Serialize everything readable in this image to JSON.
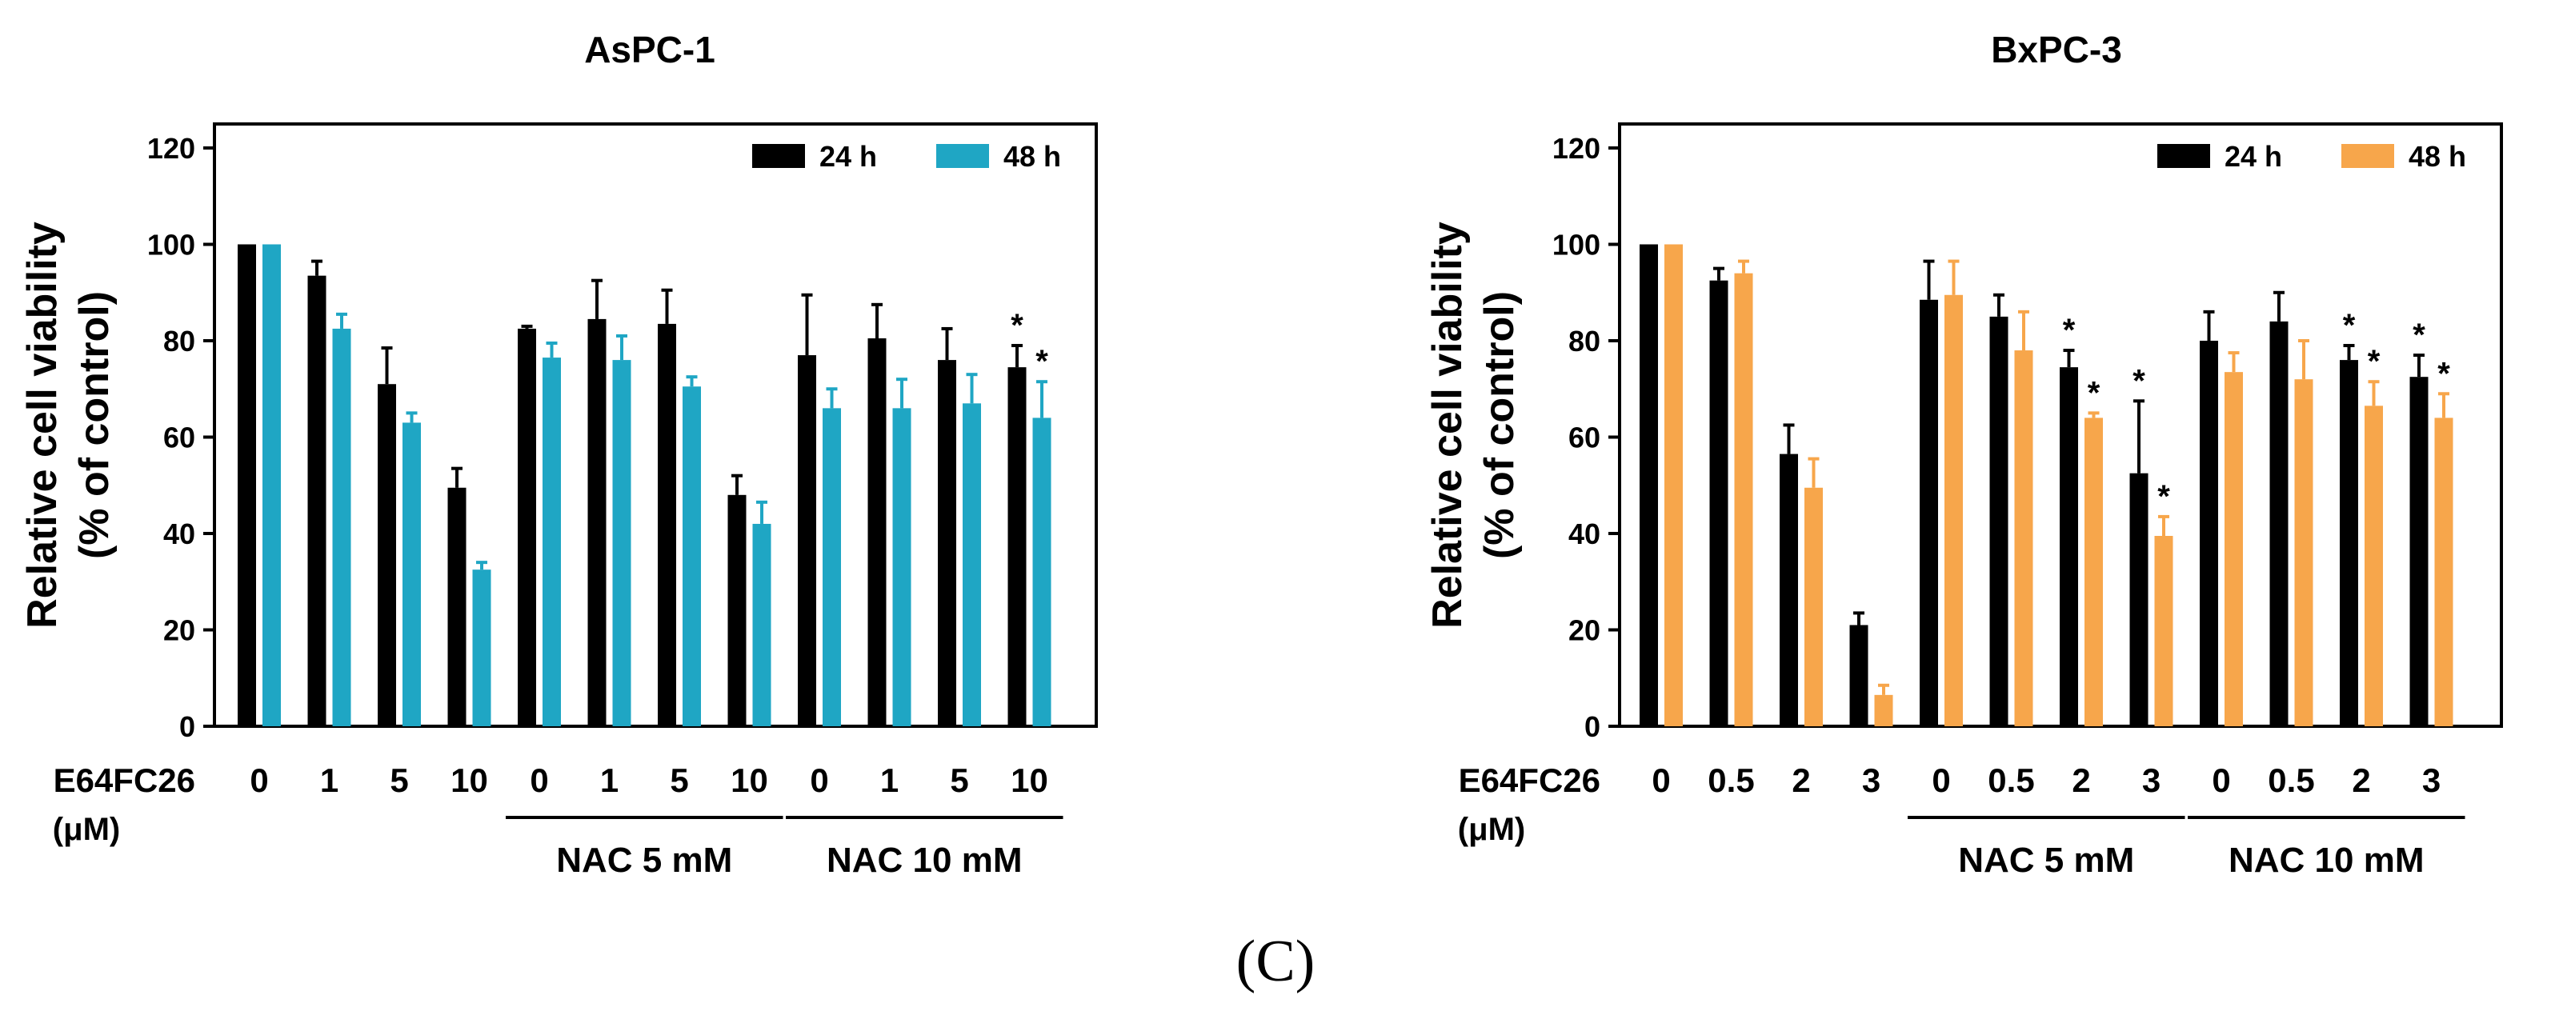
{
  "panel_label": "(C)",
  "chart_data": [
    {
      "type": "bar",
      "title": "AsPC-1",
      "xlabel": "",
      "ylabel_line1": "Relative cell viability",
      "ylabel_line2": "(% of control)",
      "ylim": [
        0,
        120
      ],
      "yticks": [
        0,
        20,
        40,
        60,
        80,
        100,
        120
      ],
      "x_axis_prefix": "E64FC26",
      "x_axis_unit": "(μM)",
      "categories": [
        "0",
        "1",
        "5",
        "10",
        "0",
        "1",
        "5",
        "10",
        "0",
        "1",
        "5",
        "10"
      ],
      "groups": [
        {
          "label": "NAC 5 mM",
          "from": 4,
          "to": 7
        },
        {
          "label": "NAC 10 mM",
          "from": 8,
          "to": 11
        }
      ],
      "legend_position": "top-right",
      "series": [
        {
          "name": "24 h",
          "color": "#000000",
          "values": [
            100,
            93.5,
            71,
            49.5,
            82.5,
            84.5,
            83.5,
            48,
            77,
            80.5,
            76,
            74.5
          ],
          "errors": [
            0,
            3,
            7.5,
            4,
            0.5,
            8,
            7,
            4,
            12.5,
            7,
            6.5,
            4.5
          ],
          "significant": [
            false,
            false,
            false,
            false,
            false,
            false,
            false,
            false,
            false,
            false,
            false,
            true
          ]
        },
        {
          "name": "48 h",
          "color": "#1FA6C4",
          "values": [
            100,
            82.5,
            63,
            32.5,
            76.5,
            76,
            70.5,
            42,
            66,
            66,
            67,
            64
          ],
          "errors": [
            0,
            3,
            2,
            1.5,
            3,
            5,
            2,
            4.5,
            4,
            6,
            6,
            7.5
          ],
          "significant": [
            false,
            false,
            false,
            false,
            false,
            false,
            false,
            false,
            false,
            false,
            false,
            true
          ]
        }
      ]
    },
    {
      "type": "bar",
      "title": "BxPC-3",
      "xlabel": "",
      "ylabel_line1": "Relative cell viability",
      "ylabel_line2": "(% of control)",
      "ylim": [
        0,
        120
      ],
      "yticks": [
        0,
        20,
        40,
        60,
        80,
        100,
        120
      ],
      "x_axis_prefix": "E64FC26",
      "x_axis_unit": "(μM)",
      "categories": [
        "0",
        "0.5",
        "2",
        "3",
        "0",
        "0.5",
        "2",
        "3",
        "0",
        "0.5",
        "2",
        "3"
      ],
      "groups": [
        {
          "label": "NAC 5 mM",
          "from": 4,
          "to": 7
        },
        {
          "label": "NAC 10 mM",
          "from": 8,
          "to": 11
        }
      ],
      "legend_position": "top-right",
      "series": [
        {
          "name": "24 h",
          "color": "#000000",
          "values": [
            100,
            92.5,
            56.5,
            21,
            88.5,
            85,
            74.5,
            52.5,
            80,
            84,
            76,
            72.5
          ],
          "errors": [
            0,
            2.5,
            6,
            2.5,
            8,
            4.5,
            3.5,
            15,
            6,
            6,
            3,
            4.5
          ],
          "significant": [
            false,
            false,
            false,
            false,
            false,
            false,
            true,
            true,
            false,
            false,
            true,
            true
          ]
        },
        {
          "name": "48 h",
          "color": "#F7A64B",
          "values": [
            100,
            94,
            49.5,
            6.5,
            89.5,
            78,
            64,
            39.5,
            73.5,
            72,
            66.5,
            64
          ],
          "errors": [
            0,
            2.5,
            6,
            2,
            7,
            8,
            1,
            4,
            4,
            8,
            5,
            5
          ],
          "significant": [
            false,
            false,
            false,
            false,
            false,
            false,
            true,
            true,
            false,
            false,
            true,
            true
          ]
        }
      ]
    }
  ]
}
